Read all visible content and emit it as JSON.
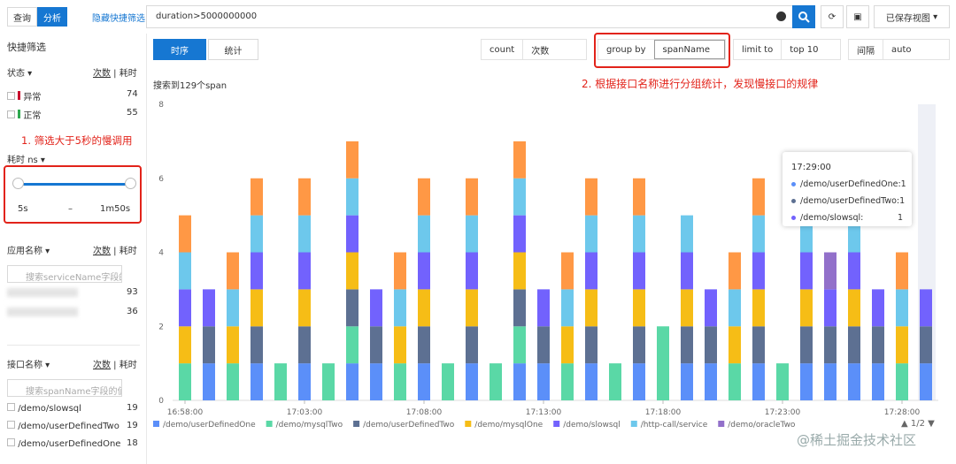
{
  "ui": {
    "tabs": [
      "查询",
      "分析"
    ],
    "hide_filter": "隐藏快捷筛选",
    "query": "duration>5000000000",
    "saved_views": "已保存视图",
    "sidebar": {
      "title": "快捷筛选",
      "status": {
        "title": "状态",
        "sort": [
          "次数",
          "耗时"
        ],
        "items": [
          {
            "label": "异常",
            "count": 74
          },
          {
            "label": "正常",
            "count": 55
          }
        ]
      },
      "annotation": "1. 筛选大于5秒的慢调用",
      "duration": {
        "title": "耗时",
        "unit": "ns",
        "min": "5s",
        "sep": "–",
        "max": "1m50s"
      },
      "app": {
        "title": "应用名称",
        "sort": [
          "次数",
          "耗时"
        ],
        "placeholder": "搜索serviceName字段的",
        "items": [
          {
            "count": 93
          },
          {
            "count": 36
          }
        ]
      },
      "api": {
        "title": "接口名称",
        "sort": [
          "次数",
          "耗时"
        ],
        "placeholder": "搜索spanName字段的值",
        "items": [
          {
            "label": "/demo/slowsql",
            "count": 19
          },
          {
            "label": "/demo/userDefinedTwo",
            "count": 19
          },
          {
            "label": "/demo/userDefinedOne",
            "count": 18
          }
        ]
      }
    },
    "view_tabs": [
      "时序",
      "统计"
    ],
    "controls": [
      {
        "label": "count",
        "value": "次数"
      },
      {
        "label": "group by",
        "value": "spanName"
      },
      {
        "label": "limit to",
        "value": "top 10"
      },
      {
        "label": "间隔",
        "value": "auto"
      }
    ],
    "result": "搜索到129个span",
    "annotation": "2. 根据接口名称进行分组统计，发现慢接口的规律",
    "watermark": "@稀土掘金技术社区"
  },
  "chart_data": {
    "type": "stacked-bar",
    "categories": [
      "16:58:00",
      null,
      null,
      null,
      null,
      "17:03:00",
      null,
      null,
      null,
      null,
      "17:08:00",
      null,
      null,
      null,
      null,
      "17:13:00",
      null,
      null,
      null,
      null,
      "17:18:00",
      null,
      null,
      null,
      null,
      "17:23:00",
      null,
      null,
      null,
      null,
      "17:28:00",
      null
    ],
    "ylim": [
      0,
      8
    ],
    "yticks": [
      0,
      2,
      4,
      6,
      8
    ],
    "grid": false,
    "series": [
      {
        "name": "/demo/userDefinedOne",
        "color": "#5b8ff9",
        "values": [
          0,
          1,
          0,
          1,
          0,
          1,
          0,
          1,
          1,
          0,
          1,
          0,
          1,
          0,
          1,
          1,
          0,
          1,
          0,
          1,
          0,
          1,
          1,
          0,
          1,
          0,
          1,
          1,
          1,
          1,
          0,
          1
        ]
      },
      {
        "name": "/demo/mysqlTwo",
        "color": "#5ad8a6",
        "values": [
          1,
          0,
          1,
          0,
          1,
          0,
          1,
          1,
          0,
          1,
          0,
          1,
          0,
          1,
          1,
          0,
          1,
          0,
          1,
          0,
          2,
          0,
          0,
          1,
          0,
          1,
          0,
          0,
          0,
          0,
          1,
          0
        ]
      },
      {
        "name": "/demo/userDefinedTwo",
        "color": "#5d7092",
        "values": [
          0,
          1,
          0,
          1,
          0,
          1,
          0,
          1,
          1,
          0,
          1,
          0,
          1,
          0,
          1,
          1,
          0,
          1,
          0,
          1,
          0,
          1,
          1,
          0,
          1,
          0,
          1,
          1,
          1,
          1,
          0,
          1
        ]
      },
      {
        "name": "/demo/mysqlOne",
        "color": "#f6bd16",
        "values": [
          1,
          0,
          1,
          1,
          0,
          1,
          0,
          1,
          0,
          1,
          1,
          0,
          1,
          0,
          1,
          0,
          1,
          1,
          0,
          1,
          0,
          1,
          0,
          1,
          1,
          0,
          1,
          0,
          1,
          0,
          1,
          0
        ]
      },
      {
        "name": "/demo/slowsql",
        "color": "#7262fd",
        "values": [
          1,
          1,
          0,
          1,
          0,
          1,
          0,
          1,
          1,
          0,
          1,
          0,
          1,
          0,
          1,
          1,
          0,
          1,
          0,
          1,
          0,
          1,
          1,
          0,
          1,
          0,
          1,
          1,
          1,
          1,
          0,
          1
        ]
      },
      {
        "name": "/http-call/service",
        "color": "#6dc8ec",
        "values": [
          1,
          0,
          1,
          1,
          0,
          1,
          0,
          1,
          0,
          1,
          1,
          0,
          1,
          0,
          1,
          0,
          1,
          1,
          0,
          1,
          0,
          1,
          0,
          1,
          1,
          0,
          1,
          0,
          1,
          0,
          1,
          0
        ]
      },
      {
        "name": "/demo/oracleTwo",
        "color": "#9270ca",
        "values": [
          0,
          0,
          0,
          0,
          0,
          0,
          0,
          0,
          0,
          0,
          0,
          0,
          0,
          0,
          0,
          0,
          0,
          0,
          0,
          0,
          0,
          0,
          0,
          0,
          0,
          0,
          0,
          1,
          0,
          0,
          0,
          0
        ]
      },
      {
        "name": null,
        "color": "#ff9845",
        "values": [
          1,
          0,
          1,
          1,
          0,
          1,
          0,
          1,
          0,
          1,
          1,
          0,
          1,
          0,
          1,
          0,
          1,
          1,
          0,
          1,
          0,
          0,
          0,
          1,
          1,
          0,
          1,
          0,
          1,
          0,
          1,
          0
        ]
      }
    ],
    "legend_page": "1/2",
    "tooltip": {
      "title": "17:29:00",
      "items": [
        {
          "name": "/demo/userDefinedOne:",
          "value": 1,
          "color": "#5b8ff9"
        },
        {
          "name": "/demo/userDefinedTwo:",
          "value": 1,
          "color": "#5d7092"
        },
        {
          "name": "/demo/slowsql:",
          "value": 1,
          "color": "#7262fd"
        }
      ]
    }
  }
}
